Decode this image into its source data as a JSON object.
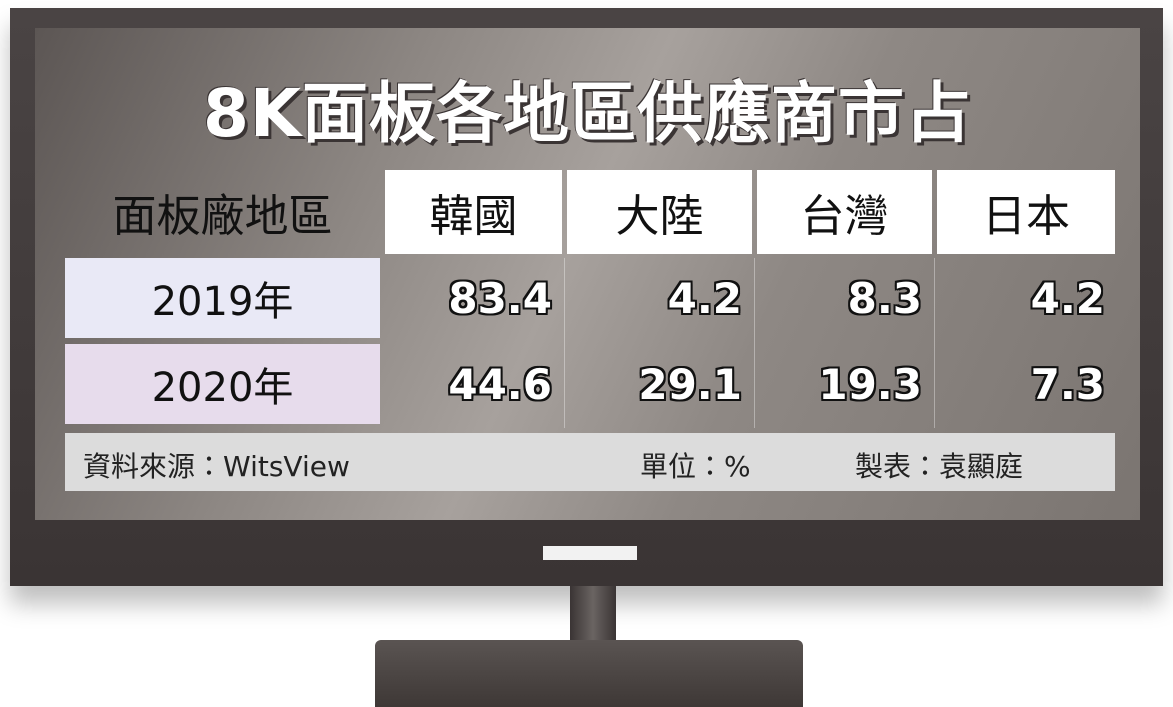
{
  "title": "8K面板各地區供應商市占",
  "table": {
    "header": [
      "面板廠地區",
      "韓國",
      "大陸",
      "台灣",
      "日本"
    ],
    "rows": [
      [
        "2019年",
        83.4,
        4.2,
        8.3,
        4.2
      ],
      [
        "2020年",
        44.6,
        29.1,
        19.3,
        7.3
      ]
    ]
  },
  "footer": {
    "source": "資料來源：WitsView",
    "unit": "單位：%",
    "author": "製表：袁顯庭"
  }
}
